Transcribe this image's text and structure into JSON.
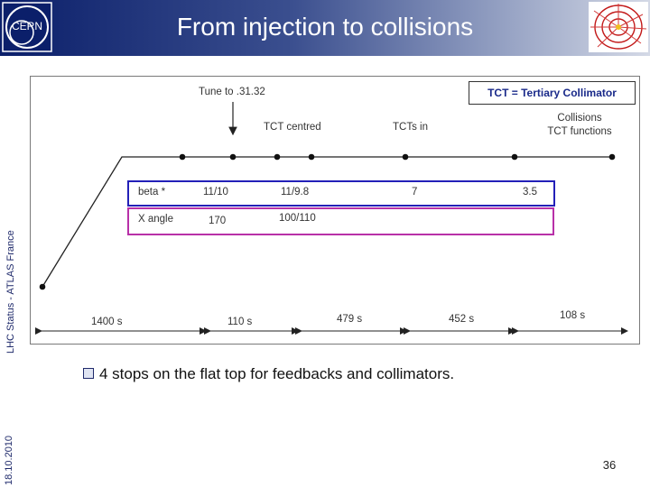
{
  "header": {
    "title": "From injection to collisions",
    "logo_text": "CERN"
  },
  "side": {
    "date": "18.10.2010",
    "status": "LHC Status - ATLAS France"
  },
  "diagram": {
    "legend_note": "TCT = Tertiary Collimator",
    "events": {
      "tune": "Tune to .31.32",
      "tct_centred": "TCT centred",
      "tcts_in": "TCTs in",
      "collisions_1": "Collisions",
      "collisions_2": "TCT functions"
    },
    "beta_row": {
      "label": "beta *",
      "values": [
        "11/10",
        "11/9.8",
        "7",
        "3.5"
      ]
    },
    "xangle_row": {
      "label": "X angle",
      "values": [
        "170",
        "100/110"
      ]
    },
    "durations": [
      "1400 s",
      "110 s",
      "479 s",
      "452 s",
      "108 s"
    ]
  },
  "bullet": {
    "text": "4 stops on the flat top for feedbacks and collimators."
  },
  "footer": {
    "page_number": "36"
  },
  "colors": {
    "header_dark": "#0b1f6a",
    "beta_border": "#2320b8",
    "xangle_border": "#b830a8",
    "legend_text": "#1a2a8a"
  }
}
